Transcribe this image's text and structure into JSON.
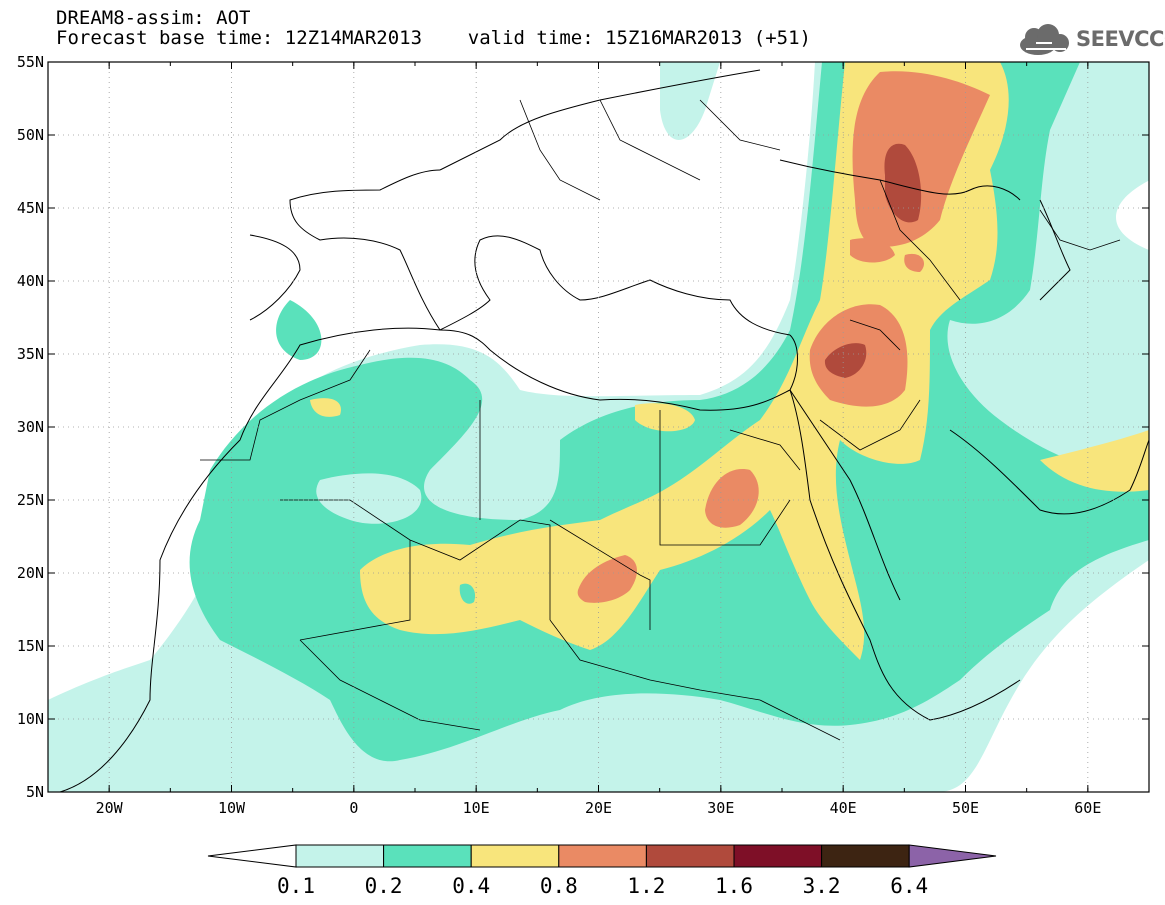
{
  "title": {
    "line1": "DREAM8-assim: AOT",
    "line2": "Forecast base time: 12Z14MAR2013    valid time: 15Z16MAR2013 (+51)"
  },
  "logo": {
    "text": "SEEVCCC",
    "icon": "cloud-icon"
  },
  "map": {
    "lon_range": [
      -25,
      65
    ],
    "lat_range": [
      5,
      55
    ],
    "lat_ticks": [
      "5N",
      "10N",
      "15N",
      "20N",
      "25N",
      "30N",
      "35N",
      "40N",
      "45N",
      "50N",
      "55N"
    ],
    "lon_ticks": [
      "20W",
      "10W",
      "0",
      "10E",
      "20E",
      "30E",
      "40E",
      "50E",
      "60E"
    ],
    "grid": "dotted"
  },
  "colorbar": {
    "labels": [
      "0.1",
      "0.2",
      "0.4",
      "0.8",
      "1.2",
      "1.6",
      "3.2",
      "6.4"
    ],
    "colors": [
      "#ffffff",
      "#c4f3ea",
      "#5ae1bb",
      "#f8e57c",
      "#ea8a64",
      "#b04a3c",
      "#7e0f27",
      "#3d2412",
      "#8c63a8"
    ]
  }
}
